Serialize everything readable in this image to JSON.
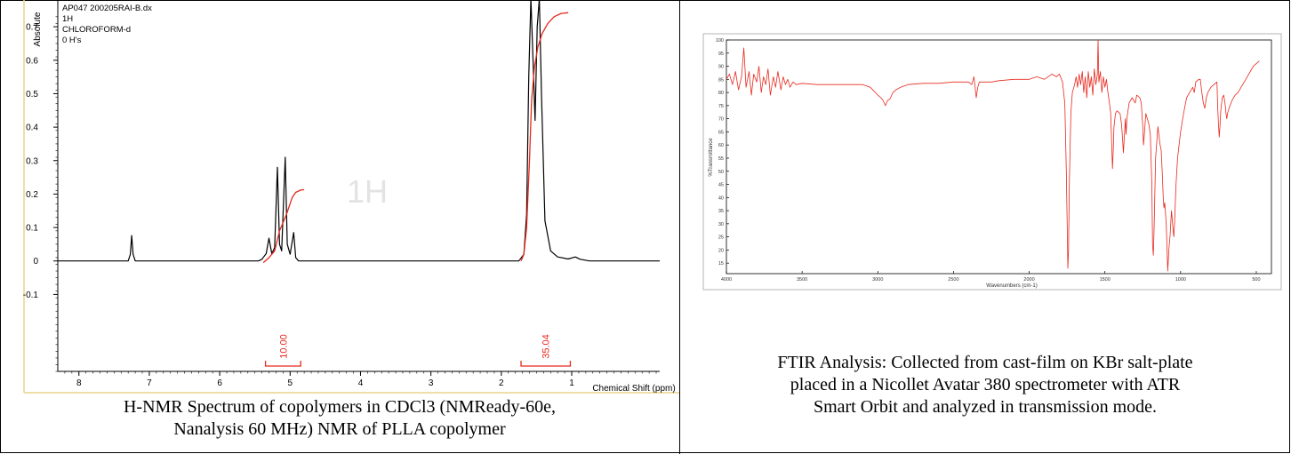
{
  "nmr": {
    "header_lines": [
      "AP047 200205RAI-B.dx",
      "1H",
      "CHLOROFORM-d",
      "0 H's"
    ],
    "ylabel": "Absolute",
    "xlabel": "Chemical Shift (ppm)",
    "watermark": "1H",
    "caption_lines": [
      "H-NMR Spectrum of copolymers in CDCl3 (NMReady-60e,",
      "Nanalysis 60 MHz) NMR of PLLA copolymer"
    ],
    "integrals": [
      {
        "label": "10.00",
        "from": 5.35,
        "to": 4.85
      },
      {
        "label": "35.04",
        "from": 1.72,
        "to": 1.02
      }
    ]
  },
  "ftir": {
    "caption_lines": [
      "FTIR Analysis: Collected from cast-film on KBr salt-plate",
      "placed in a Nicollet Avatar 380 spectrometer with ATR",
      "Smart Orbit and analyzed in transmission mode."
    ]
  },
  "chart_data": [
    {
      "type": "line",
      "title": "",
      "xlabel": "Chemical Shift (ppm)",
      "ylabel": "Absolute",
      "xlim": [
        8.3,
        -0.25
      ],
      "ylim": [
        -0.33,
        0.78
      ],
      "xticks": [
        "8",
        "7",
        "6",
        "5",
        "4",
        "3",
        "2",
        "1"
      ],
      "yticks": [
        "0.7",
        "0.6",
        "0.5",
        "0.4",
        "0.3",
        "0.2",
        "0.1",
        "0",
        "-0.1"
      ],
      "grid": false,
      "series": [
        {
          "color": "#000000",
          "points": [
            [
              8.3,
              0
            ],
            [
              7.3,
              0
            ],
            [
              7.27,
              0.02
            ],
            [
              7.25,
              0.076
            ],
            [
              7.23,
              0.02
            ],
            [
              7.2,
              0
            ],
            [
              5.45,
              0
            ],
            [
              5.4,
              0.005
            ],
            [
              5.34,
              0.022
            ],
            [
              5.3,
              0.068
            ],
            [
              5.26,
              0.022
            ],
            [
              5.22,
              0.04
            ],
            [
              5.18,
              0.28
            ],
            [
              5.15,
              0.05
            ],
            [
              5.12,
              0.03
            ],
            [
              5.07,
              0.31
            ],
            [
              5.04,
              0.05
            ],
            [
              5.0,
              0.02
            ],
            [
              4.95,
              0.085
            ],
            [
              4.92,
              0.01
            ],
            [
              4.88,
              0
            ],
            [
              1.75,
              0
            ],
            [
              1.68,
              0.02
            ],
            [
              1.64,
              0.14
            ],
            [
              1.61,
              0.55
            ],
            [
              1.58,
              0.87
            ],
            [
              1.55,
              0.6
            ],
            [
              1.52,
              0.42
            ],
            [
              1.49,
              0.7
            ],
            [
              1.46,
              0.87
            ],
            [
              1.43,
              0.5
            ],
            [
              1.38,
              0.12
            ],
            [
              1.3,
              0.03
            ],
            [
              1.2,
              0.012
            ],
            [
              1.05,
              0.006
            ],
            [
              0.95,
              0.012
            ],
            [
              0.88,
              0.005
            ],
            [
              0.75,
              0
            ],
            [
              -0.25,
              0
            ]
          ]
        },
        {
          "color": "#e8281e",
          "points": [
            [
              5.38,
              -0.005
            ],
            [
              5.3,
              0.01
            ],
            [
              5.22,
              0.03
            ],
            [
              5.15,
              0.09
            ],
            [
              5.05,
              0.14
            ],
            [
              4.97,
              0.19
            ],
            [
              4.92,
              0.205
            ],
            [
              4.85,
              0.212
            ],
            [
              4.8,
              0.213
            ]
          ]
        },
        {
          "color": "#e8281e",
          "points": [
            [
              1.72,
              0
            ],
            [
              1.68,
              0.02
            ],
            [
              1.64,
              0.1
            ],
            [
              1.6,
              0.3
            ],
            [
              1.57,
              0.48
            ],
            [
              1.53,
              0.58
            ],
            [
              1.48,
              0.64
            ],
            [
              1.42,
              0.68
            ],
            [
              1.34,
              0.71
            ],
            [
              1.25,
              0.73
            ],
            [
              1.15,
              0.74
            ],
            [
              1.05,
              0.742
            ]
          ]
        }
      ]
    },
    {
      "type": "line",
      "title": "",
      "xlabel": "Wavenumbers (cm-1)",
      "ylabel": "%Transmittance",
      "xlim": [
        4000,
        400
      ],
      "ylim": [
        11,
        100
      ],
      "xticks": [
        "4000",
        "3500",
        "3000",
        "2500",
        "2000",
        "1500",
        "1000",
        "500"
      ],
      "yticks": [
        "100",
        "95",
        "90",
        "85",
        "80",
        "75",
        "70",
        "65",
        "60",
        "55",
        "50",
        "45",
        "40",
        "35",
        "30",
        "25",
        "20",
        "15"
      ],
      "grid": false,
      "series": [
        {
          "color": "#e8281e",
          "points": [
            [
              4000,
              85
            ],
            [
              3980,
              87
            ],
            [
              3960,
              83
            ],
            [
              3940,
              88
            ],
            [
              3920,
              81
            ],
            [
              3900,
              86
            ],
            [
              3885,
              97
            ],
            [
              3870,
              82
            ],
            [
              3850,
              88
            ],
            [
              3835,
              79
            ],
            [
              3820,
              87
            ],
            [
              3800,
              84
            ],
            [
              3785,
              90
            ],
            [
              3770,
              80
            ],
            [
              3755,
              86
            ],
            [
              3740,
              83
            ],
            [
              3725,
              89
            ],
            [
              3710,
              79
            ],
            [
              3690,
              86
            ],
            [
              3675,
              82
            ],
            [
              3660,
              88
            ],
            [
              3640,
              81
            ],
            [
              3625,
              86
            ],
            [
              3610,
              83
            ],
            [
              3595,
              85
            ],
            [
              3580,
              82
            ],
            [
              3560,
              84
            ],
            [
              3540,
              83
            ],
            [
              3500,
              83.5
            ],
            [
              3400,
              83
            ],
            [
              3300,
              83
            ],
            [
              3200,
              83
            ],
            [
              3100,
              83
            ],
            [
              3050,
              82
            ],
            [
              3000,
              79
            ],
            [
              2980,
              78
            ],
            [
              2965,
              77
            ],
            [
              2950,
              75
            ],
            [
              2935,
              77
            ],
            [
              2920,
              77.5
            ],
            [
              2900,
              80
            ],
            [
              2880,
              81
            ],
            [
              2850,
              82
            ],
            [
              2800,
              83
            ],
            [
              2700,
              83.5
            ],
            [
              2600,
              83.5
            ],
            [
              2500,
              84
            ],
            [
              2400,
              84
            ],
            [
              2380,
              83
            ],
            [
              2365,
              86
            ],
            [
              2350,
              78
            ],
            [
              2340,
              82
            ],
            [
              2330,
              84
            ],
            [
              2300,
              84
            ],
            [
              2250,
              84
            ],
            [
              2200,
              84.5
            ],
            [
              2100,
              85
            ],
            [
              2000,
              85
            ],
            [
              1950,
              86
            ],
            [
              1900,
              85
            ],
            [
              1850,
              87
            ],
            [
              1820,
              86
            ],
            [
              1800,
              87
            ],
            [
              1780,
              84
            ],
            [
              1765,
              76
            ],
            [
              1755,
              50
            ],
            [
              1748,
              25
            ],
            [
              1745,
              13
            ],
            [
              1740,
              20
            ],
            [
              1735,
              45
            ],
            [
              1725,
              72
            ],
            [
              1715,
              80
            ],
            [
              1700,
              83
            ],
            [
              1690,
              86
            ],
            [
              1680,
              82
            ],
            [
              1670,
              87
            ],
            [
              1660,
              83
            ],
            [
              1650,
              88
            ],
            [
              1640,
              80
            ],
            [
              1630,
              86
            ],
            [
              1620,
              78
            ],
            [
              1610,
              88
            ],
            [
              1600,
              82
            ],
            [
              1590,
              86
            ],
            [
              1580,
              79
            ],
            [
              1570,
              89
            ],
            [
              1560,
              83
            ],
            [
              1550,
              87
            ],
            [
              1545,
              100
            ],
            [
              1540,
              84
            ],
            [
              1530,
              88
            ],
            [
              1520,
              80
            ],
            [
              1510,
              86
            ],
            [
              1500,
              82
            ],
            [
              1490,
              85
            ],
            [
              1480,
              80
            ],
            [
              1470,
              76
            ],
            [
              1462,
              72
            ],
            [
              1455,
              60
            ],
            [
              1450,
              51
            ],
            [
              1445,
              58
            ],
            [
              1440,
              67
            ],
            [
              1430,
              72
            ],
            [
              1420,
              73
            ],
            [
              1400,
              72
            ],
            [
              1390,
              68
            ],
            [
              1383,
              62
            ],
            [
              1378,
              57
            ],
            [
              1372,
              63
            ],
            [
              1365,
              70
            ],
            [
              1360,
              64
            ],
            [
              1355,
              70
            ],
            [
              1340,
              76
            ],
            [
              1320,
              78
            ],
            [
              1300,
              76
            ],
            [
              1290,
              79
            ],
            [
              1270,
              78
            ],
            [
              1260,
              76
            ],
            [
              1250,
              67
            ],
            [
              1245,
              60
            ],
            [
              1238,
              65
            ],
            [
              1230,
              72
            ],
            [
              1220,
              70
            ],
            [
              1210,
              68
            ],
            [
              1200,
              64
            ],
            [
              1190,
              45
            ],
            [
              1185,
              22
            ],
            [
              1180,
              18
            ],
            [
              1175,
              28
            ],
            [
              1165,
              55
            ],
            [
              1150,
              67
            ],
            [
              1135,
              60
            ],
            [
              1128,
              58
            ],
            [
              1120,
              48
            ],
            [
              1115,
              40
            ],
            [
              1110,
              36
            ],
            [
              1105,
              38
            ],
            [
              1095,
              30
            ],
            [
              1088,
              18
            ],
            [
              1085,
              12
            ],
            [
              1078,
              20
            ],
            [
              1070,
              25
            ],
            [
              1060,
              35
            ],
            [
              1050,
              28
            ],
            [
              1045,
              25
            ],
            [
              1040,
              30
            ],
            [
              1030,
              45
            ],
            [
              1020,
              55
            ],
            [
              1000,
              65
            ],
            [
              980,
              72
            ],
            [
              960,
              78
            ],
            [
              940,
              80
            ],
            [
              920,
              82
            ],
            [
              910,
              80
            ],
            [
              900,
              84
            ],
            [
              880,
              85
            ],
            [
              870,
              85
            ],
            [
              860,
              80
            ],
            [
              850,
              76
            ],
            [
              845,
              75
            ],
            [
              840,
              74
            ],
            [
              830,
              78
            ],
            [
              820,
              80
            ],
            [
              800,
              82
            ],
            [
              780,
              83
            ],
            [
              760,
              84
            ],
            [
              755,
              74
            ],
            [
              750,
              68
            ],
            [
              745,
              63
            ],
            [
              740,
              67
            ],
            [
              735,
              73
            ],
            [
              725,
              78
            ],
            [
              715,
              79
            ],
            [
              705,
              75
            ],
            [
              700,
              72
            ],
            [
              695,
              70
            ],
            [
              690,
              72
            ],
            [
              680,
              74
            ],
            [
              660,
              77
            ],
            [
              640,
              79
            ],
            [
              620,
              80
            ],
            [
              600,
              82
            ],
            [
              580,
              84
            ],
            [
              560,
              86
            ],
            [
              540,
              88
            ],
            [
              520,
              90
            ],
            [
              500,
              91
            ],
            [
              480,
              92
            ]
          ]
        }
      ]
    }
  ]
}
